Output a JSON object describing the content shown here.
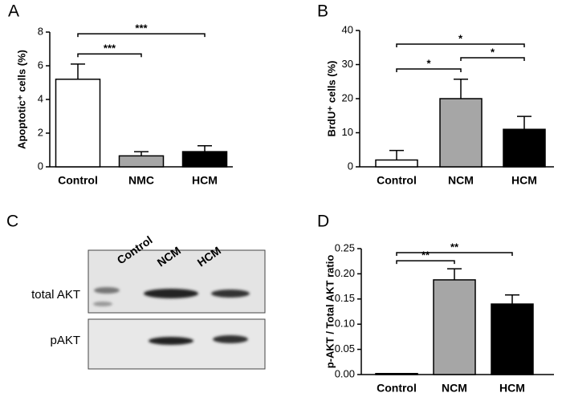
{
  "chart_data": [
    {
      "type": "bar",
      "panel": "A",
      "ylabel": "Apoptotic⁺ cells (%)",
      "categories": [
        "Control",
        "NMC",
        "HCM"
      ],
      "values": [
        5.2,
        0.65,
        0.9
      ],
      "errors": [
        0.9,
        0.25,
        0.35
      ],
      "colors": [
        "#ffffff",
        "#a6a6a6",
        "#000000"
      ],
      "ylim": [
        0,
        8
      ],
      "yticks": [
        0,
        2,
        4,
        6,
        8
      ],
      "annotations": [
        {
          "from": 0,
          "to": 1,
          "y": 6.7,
          "label": "***"
        },
        {
          "from": 0,
          "to": 2,
          "y": 7.9,
          "label": "***"
        }
      ]
    },
    {
      "type": "bar",
      "panel": "B",
      "ylabel": "BrdU⁺ cells (%)",
      "categories": [
        "Control",
        "NCM",
        "HCM"
      ],
      "values": [
        2,
        20,
        11
      ],
      "errors": [
        2.8,
        5.7,
        3.8
      ],
      "colors": [
        "#ffffff",
        "#a6a6a6",
        "#000000"
      ],
      "ylim": [
        0,
        40
      ],
      "yticks": [
        0,
        10,
        20,
        30,
        40
      ],
      "annotations": [
        {
          "from": 0,
          "to": 1,
          "y": 28.7,
          "label": "*"
        },
        {
          "from": 1,
          "to": 2,
          "y": 32,
          "label": "*"
        },
        {
          "from": 0,
          "to": 2,
          "y": 36,
          "label": "*"
        }
      ]
    },
    {
      "type": "bar",
      "panel": "D",
      "ylabel": "p-AKT / Total AKT ratio",
      "categories": [
        "Control",
        "NCM",
        "HCM"
      ],
      "values": [
        0.002,
        0.188,
        0.14
      ],
      "errors": [
        0,
        0.022,
        0.018
      ],
      "colors": [
        "#ffffff",
        "#a6a6a6",
        "#000000"
      ],
      "ylim": [
        0,
        0.25
      ],
      "yticks": [
        {
          "value": 0,
          "label": "0.00"
        },
        {
          "value": 0.05,
          "label": "0.05"
        },
        {
          "value": 0.1,
          "label": "0.10"
        },
        {
          "value": 0.15,
          "label": "0.15"
        },
        {
          "value": 0.2,
          "label": "0.20"
        },
        {
          "value": 0.25,
          "label": "0.25"
        }
      ],
      "annotations": [
        {
          "from": 0,
          "to": 1,
          "y": 0.226,
          "label": "**"
        },
        {
          "from": 0,
          "to": 2,
          "y": 0.242,
          "label": "**"
        }
      ]
    }
  ],
  "blot": {
    "panel": "C",
    "lanes": [
      "Control",
      "NCM",
      "HCM"
    ],
    "rows": [
      "total AKT",
      "pAKT"
    ]
  }
}
